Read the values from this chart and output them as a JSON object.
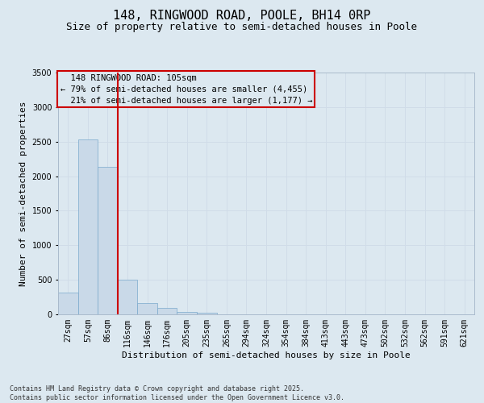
{
  "title_line1": "148, RINGWOOD ROAD, POOLE, BH14 0RP",
  "title_line2": "Size of property relative to semi-detached houses in Poole",
  "xlabel": "Distribution of semi-detached houses by size in Poole",
  "ylabel": "Number of semi-detached properties",
  "categories": [
    "27sqm",
    "57sqm",
    "86sqm",
    "116sqm",
    "146sqm",
    "176sqm",
    "205sqm",
    "235sqm",
    "265sqm",
    "294sqm",
    "324sqm",
    "354sqm",
    "384sqm",
    "413sqm",
    "443sqm",
    "473sqm",
    "502sqm",
    "532sqm",
    "562sqm",
    "591sqm",
    "621sqm"
  ],
  "values": [
    310,
    2530,
    2140,
    500,
    160,
    90,
    35,
    18,
    0,
    0,
    0,
    0,
    0,
    0,
    0,
    0,
    0,
    0,
    0,
    0,
    0
  ],
  "bar_color": "#c9d9e8",
  "bar_edge_color": "#7aa8cc",
  "vline_color": "#cc0000",
  "vline_index": 3,
  "ylim": [
    0,
    3500
  ],
  "yticks": [
    0,
    500,
    1000,
    1500,
    2000,
    2500,
    3000,
    3500
  ],
  "property_size": "105sqm",
  "property_name": "148 RINGWOOD ROAD",
  "pct_smaller": 79,
  "count_smaller": "4,455",
  "pct_larger": 21,
  "count_larger": "1,177",
  "annotation_box_color": "#cc0000",
  "grid_color": "#d0dce8",
  "bg_color": "#dce8f0",
  "footer_line1": "Contains HM Land Registry data © Crown copyright and database right 2025.",
  "footer_line2": "Contains public sector information licensed under the Open Government Licence v3.0.",
  "title_fontsize": 11,
  "subtitle_fontsize": 9,
  "axis_label_fontsize": 8,
  "tick_fontsize": 7,
  "annotation_fontsize": 7.5,
  "footer_fontsize": 6
}
